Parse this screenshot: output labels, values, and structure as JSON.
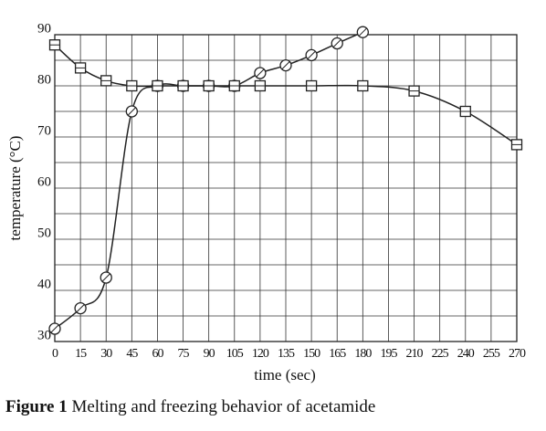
{
  "chart_data": {
    "type": "line",
    "x_label": "time (sec)",
    "y_label": "temperature (°C)",
    "caption_label": "Figure 1",
    "caption_text": "Melting and freezing behavior of acetamide",
    "xlim": [
      0,
      270
    ],
    "xticks": [
      0,
      15,
      30,
      45,
      60,
      75,
      90,
      105,
      120,
      135,
      150,
      165,
      180,
      195,
      210,
      225,
      240,
      255,
      270
    ],
    "ylim": [
      30,
      90
    ],
    "yticks": [
      30,
      40,
      50,
      60,
      70,
      80,
      90
    ],
    "y_minor_grid": [
      35,
      45,
      55,
      65,
      75,
      85
    ],
    "grid": true,
    "series": [
      {
        "marker": "circle",
        "color": "#222",
        "x": [
          0,
          15,
          30,
          45,
          60,
          75,
          90,
          105,
          120,
          135,
          150,
          165,
          180
        ],
        "values": [
          32.5,
          36.5,
          42.5,
          75,
          80,
          80,
          80,
          80,
          82.5,
          84,
          86,
          88.3,
          90.5
        ]
      },
      {
        "marker": "square",
        "color": "#222",
        "x": [
          0,
          15,
          30,
          45,
          60,
          75,
          90,
          105,
          120,
          150,
          180,
          210,
          240,
          270
        ],
        "values": [
          88,
          83.5,
          81,
          80,
          80,
          80,
          80,
          80,
          80,
          80,
          80,
          79,
          75,
          68.5
        ]
      }
    ]
  }
}
